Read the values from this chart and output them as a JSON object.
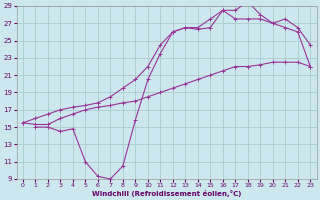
{
  "xlabel": "Windchill (Refroidissement éolien,°C)",
  "bg_color": "#cce8ee",
  "grid_color": "#aacccc",
  "line_color": "#993399",
  "xlim": [
    -0.5,
    23.5
  ],
  "ylim": [
    9,
    29
  ],
  "xticks": [
    0,
    1,
    2,
    3,
    4,
    5,
    6,
    7,
    8,
    9,
    10,
    11,
    12,
    13,
    14,
    15,
    16,
    17,
    18,
    19,
    20,
    21,
    22,
    23
  ],
  "yticks": [
    9,
    11,
    13,
    15,
    17,
    19,
    21,
    23,
    25,
    27,
    29
  ],
  "line1_x": [
    0,
    1,
    2,
    3,
    4,
    5,
    6,
    7,
    8,
    9,
    10,
    11,
    12,
    13,
    14,
    15,
    16,
    17,
    18,
    19,
    20,
    21,
    22,
    23
  ],
  "line1_y": [
    15.5,
    15.3,
    15.3,
    16.0,
    16.5,
    17.0,
    17.3,
    17.5,
    17.8,
    18.0,
    18.5,
    19.0,
    19.5,
    20.0,
    20.5,
    21.0,
    21.5,
    22.0,
    22.0,
    22.2,
    22.5,
    22.5,
    22.5,
    22.0
  ],
  "line2_x": [
    1,
    2,
    3,
    4,
    5,
    6,
    7,
    8,
    9,
    10,
    11,
    12,
    13,
    14,
    15,
    16,
    17,
    18,
    19,
    20,
    21,
    22,
    23
  ],
  "line2_y": [
    15.0,
    15.0,
    14.5,
    14.8,
    11.0,
    9.3,
    9.0,
    10.5,
    15.8,
    20.5,
    23.5,
    26.0,
    26.5,
    26.3,
    26.5,
    28.5,
    28.5,
    29.5,
    28.0,
    27.0,
    27.5,
    26.5,
    24.5
  ],
  "line3_x": [
    0,
    1,
    2,
    3,
    4,
    5,
    6,
    7,
    8,
    9,
    10,
    11,
    12,
    13,
    14,
    15,
    16,
    17,
    18,
    19,
    20,
    21,
    22,
    23
  ],
  "line3_y": [
    15.5,
    16.0,
    16.5,
    17.0,
    17.3,
    17.5,
    17.8,
    18.5,
    19.5,
    20.5,
    22.0,
    24.5,
    26.0,
    26.5,
    26.5,
    27.5,
    28.5,
    27.5,
    27.5,
    27.5,
    27.0,
    26.5,
    26.0,
    22.0
  ]
}
